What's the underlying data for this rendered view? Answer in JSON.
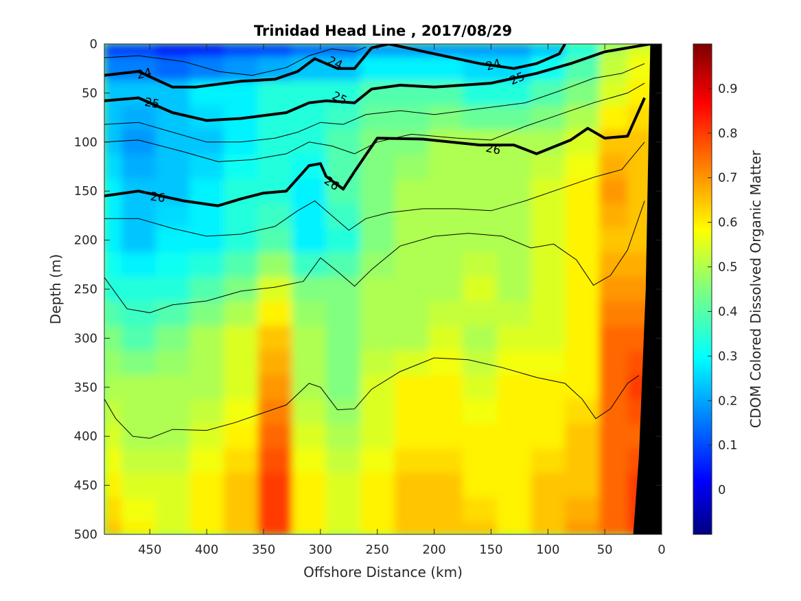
{
  "chart_data": {
    "type": "heatmap",
    "title": "Trinidad Head Line , 2017/08/29",
    "xlabel": "Offshore Distance (km)",
    "ylabel": "Depth (m)",
    "colorbar_label": "CDOM Colored Dissolved Organic Matter",
    "xlim": [
      490,
      0
    ],
    "ylim": [
      500,
      0
    ],
    "x_ticks": [
      450,
      400,
      350,
      300,
      250,
      200,
      150,
      100,
      50,
      0
    ],
    "y_ticks": [
      0,
      50,
      100,
      150,
      200,
      250,
      300,
      350,
      400,
      450,
      500
    ],
    "colorbar_ticks": [
      0,
      0.1,
      0.2,
      0.3,
      0.4,
      0.5,
      0.6,
      0.7,
      0.8,
      0.9
    ],
    "colorbar_range": [
      -0.1,
      1.0
    ],
    "colormap": "jet",
    "field_x_km": [
      490,
      460,
      430,
      400,
      370,
      340,
      310,
      280,
      250,
      220,
      190,
      160,
      130,
      100,
      70,
      40,
      20
    ],
    "field_depth_m": [
      0,
      25,
      50,
      75,
      100,
      125,
      150,
      175,
      200,
      225,
      250,
      275,
      300,
      325,
      350,
      375,
      400,
      425,
      450,
      475,
      500
    ],
    "cdom_profiles": [
      {
        "depth": 0,
        "values": [
          0.1,
          0.1,
          0.05,
          0.05,
          0.1,
          0.1,
          0.15,
          0.15,
          0.2,
          0.2,
          0.2,
          0.2,
          0.2,
          0.25,
          0.35,
          0.5,
          0.55
        ]
      },
      {
        "depth": 50,
        "values": [
          0.25,
          0.25,
          0.25,
          0.3,
          0.3,
          0.35,
          0.35,
          0.35,
          0.4,
          0.4,
          0.4,
          0.35,
          0.35,
          0.4,
          0.45,
          0.55,
          0.6
        ]
      },
      {
        "depth": 100,
        "values": [
          0.25,
          0.2,
          0.25,
          0.25,
          0.3,
          0.35,
          0.35,
          0.4,
          0.45,
          0.45,
          0.5,
          0.5,
          0.5,
          0.5,
          0.55,
          0.65,
          0.65
        ]
      },
      {
        "depth": 150,
        "values": [
          0.3,
          0.25,
          0.25,
          0.3,
          0.35,
          0.35,
          0.3,
          0.4,
          0.45,
          0.5,
          0.5,
          0.5,
          0.5,
          0.55,
          0.6,
          0.7,
          0.65
        ]
      },
      {
        "depth": 200,
        "values": [
          0.3,
          0.25,
          0.3,
          0.3,
          0.35,
          0.4,
          0.3,
          0.35,
          0.45,
          0.5,
          0.5,
          0.5,
          0.5,
          0.55,
          0.6,
          0.65,
          0.65
        ]
      },
      {
        "depth": 250,
        "values": [
          0.35,
          0.35,
          0.35,
          0.4,
          0.45,
          0.55,
          0.45,
          0.45,
          0.5,
          0.5,
          0.5,
          0.55,
          0.5,
          0.55,
          0.6,
          0.7,
          0.7
        ]
      },
      {
        "depth": 300,
        "values": [
          0.45,
          0.4,
          0.45,
          0.5,
          0.55,
          0.65,
          0.5,
          0.45,
          0.5,
          0.5,
          0.55,
          0.5,
          0.55,
          0.55,
          0.6,
          0.75,
          0.75
        ]
      },
      {
        "depth": 350,
        "values": [
          0.5,
          0.5,
          0.5,
          0.5,
          0.55,
          0.7,
          0.5,
          0.45,
          0.55,
          0.6,
          0.6,
          0.55,
          0.6,
          0.6,
          0.6,
          0.75,
          0.8
        ]
      },
      {
        "depth": 400,
        "values": [
          0.55,
          0.5,
          0.5,
          0.55,
          0.6,
          0.75,
          0.55,
          0.5,
          0.55,
          0.6,
          0.6,
          0.6,
          0.6,
          0.6,
          0.65,
          0.75,
          0.75
        ]
      },
      {
        "depth": 450,
        "values": [
          0.6,
          0.55,
          0.55,
          0.6,
          0.65,
          0.8,
          0.6,
          0.55,
          0.6,
          0.65,
          0.65,
          0.6,
          0.6,
          0.65,
          0.65,
          0.75,
          0.8
        ]
      },
      {
        "depth": 500,
        "values": [
          0.65,
          0.6,
          0.55,
          0.6,
          0.65,
          0.8,
          0.6,
          0.55,
          0.6,
          0.65,
          0.65,
          0.65,
          0.6,
          0.65,
          0.7,
          0.75,
          0.8
        ]
      }
    ],
    "density_contours": [
      {
        "level": 24,
        "label": "24",
        "bold": true,
        "points": [
          [
            490,
            32
          ],
          [
            460,
            28
          ],
          [
            430,
            44
          ],
          [
            410,
            44
          ],
          [
            370,
            38
          ],
          [
            340,
            36
          ],
          [
            320,
            28
          ],
          [
            305,
            15
          ],
          [
            285,
            25
          ],
          [
            270,
            25
          ],
          [
            255,
            4
          ],
          [
            240,
            0
          ],
          [
            200,
            10
          ],
          [
            160,
            20
          ],
          [
            130,
            25
          ],
          [
            110,
            20
          ],
          [
            90,
            10
          ],
          [
            85,
            0
          ]
        ]
      },
      {
        "level": 25,
        "label": "25",
        "bold": true,
        "points": [
          [
            490,
            58
          ],
          [
            460,
            55
          ],
          [
            430,
            70
          ],
          [
            400,
            78
          ],
          [
            370,
            76
          ],
          [
            330,
            70
          ],
          [
            310,
            60
          ],
          [
            295,
            58
          ],
          [
            270,
            60
          ],
          [
            255,
            46
          ],
          [
            230,
            42
          ],
          [
            200,
            44
          ],
          [
            150,
            40
          ],
          [
            110,
            30
          ],
          [
            80,
            20
          ],
          [
            50,
            8
          ],
          [
            10,
            0
          ]
        ]
      },
      {
        "level": 26,
        "label": "26",
        "bold": true,
        "points": [
          [
            490,
            155
          ],
          [
            460,
            150
          ],
          [
            420,
            160
          ],
          [
            390,
            165
          ],
          [
            370,
            158
          ],
          [
            350,
            152
          ],
          [
            330,
            150
          ],
          [
            310,
            124
          ],
          [
            300,
            122
          ],
          [
            295,
            135
          ],
          [
            280,
            148
          ],
          [
            270,
            130
          ],
          [
            250,
            96
          ],
          [
            210,
            97
          ],
          [
            160,
            103
          ],
          [
            130,
            103
          ],
          [
            110,
            112
          ],
          [
            80,
            98
          ],
          [
            65,
            86
          ],
          [
            50,
            96
          ],
          [
            30,
            94
          ],
          [
            15,
            55
          ]
        ]
      }
    ],
    "other_isolines": [
      {
        "points": [
          [
            490,
            14
          ],
          [
            460,
            12
          ],
          [
            420,
            18
          ],
          [
            390,
            28
          ],
          [
            360,
            32
          ],
          [
            330,
            24
          ],
          [
            310,
            12
          ],
          [
            290,
            5
          ],
          [
            270,
            8
          ],
          [
            260,
            3
          ]
        ]
      },
      {
        "points": [
          [
            490,
            82
          ],
          [
            460,
            80
          ],
          [
            430,
            90
          ],
          [
            400,
            100
          ],
          [
            370,
            100
          ],
          [
            340,
            96
          ],
          [
            320,
            90
          ],
          [
            300,
            80
          ],
          [
            280,
            82
          ],
          [
            260,
            72
          ],
          [
            230,
            68
          ],
          [
            200,
            72
          ],
          [
            160,
            66
          ],
          [
            120,
            60
          ],
          [
            90,
            48
          ],
          [
            60,
            35
          ],
          [
            35,
            30
          ],
          [
            15,
            20
          ]
        ]
      },
      {
        "points": [
          [
            490,
            100
          ],
          [
            460,
            98
          ],
          [
            420,
            110
          ],
          [
            390,
            120
          ],
          [
            360,
            118
          ],
          [
            330,
            112
          ],
          [
            310,
            100
          ],
          [
            290,
            104
          ],
          [
            270,
            112
          ],
          [
            250,
            100
          ],
          [
            220,
            92
          ],
          [
            180,
            96
          ],
          [
            150,
            98
          ],
          [
            120,
            84
          ],
          [
            90,
            72
          ],
          [
            60,
            60
          ],
          [
            30,
            50
          ],
          [
            15,
            40
          ]
        ]
      },
      {
        "points": [
          [
            490,
            178
          ],
          [
            460,
            178
          ],
          [
            430,
            188
          ],
          [
            400,
            196
          ],
          [
            370,
            194
          ],
          [
            340,
            186
          ],
          [
            320,
            170
          ],
          [
            305,
            160
          ],
          [
            290,
            175
          ],
          [
            275,
            190
          ],
          [
            260,
            178
          ],
          [
            240,
            172
          ],
          [
            210,
            168
          ],
          [
            180,
            168
          ],
          [
            150,
            170
          ],
          [
            120,
            160
          ],
          [
            90,
            148
          ],
          [
            60,
            136
          ],
          [
            35,
            128
          ],
          [
            15,
            100
          ]
        ]
      },
      {
        "points": [
          [
            490,
            238
          ],
          [
            470,
            270
          ],
          [
            450,
            274
          ],
          [
            430,
            266
          ],
          [
            400,
            262
          ],
          [
            370,
            252
          ],
          [
            340,
            248
          ],
          [
            315,
            242
          ],
          [
            300,
            218
          ],
          [
            285,
            232
          ],
          [
            270,
            247
          ],
          [
            255,
            230
          ],
          [
            230,
            206
          ],
          [
            200,
            196
          ],
          [
            170,
            193
          ],
          [
            140,
            196
          ],
          [
            115,
            208
          ],
          [
            95,
            204
          ],
          [
            75,
            220
          ],
          [
            60,
            246
          ],
          [
            45,
            236
          ],
          [
            30,
            210
          ],
          [
            15,
            160
          ]
        ]
      },
      {
        "points": [
          [
            490,
            362
          ],
          [
            480,
            382
          ],
          [
            465,
            400
          ],
          [
            450,
            402
          ],
          [
            430,
            393
          ],
          [
            400,
            394
          ],
          [
            375,
            386
          ],
          [
            350,
            376
          ],
          [
            330,
            368
          ],
          [
            310,
            346
          ],
          [
            300,
            350
          ],
          [
            285,
            373
          ],
          [
            270,
            372
          ],
          [
            255,
            352
          ],
          [
            230,
            334
          ],
          [
            200,
            320
          ],
          [
            170,
            322
          ],
          [
            140,
            330
          ],
          [
            110,
            340
          ],
          [
            85,
            346
          ],
          [
            70,
            362
          ],
          [
            58,
            382
          ],
          [
            45,
            372
          ],
          [
            30,
            346
          ],
          [
            20,
            338
          ]
        ]
      }
    ],
    "contour_labels": [
      {
        "text": "24",
        "x": 455,
        "y": 30,
        "angle": -12
      },
      {
        "text": "24",
        "x": 287,
        "y": 19,
        "angle": 25
      },
      {
        "text": "24",
        "x": 148,
        "y": 21,
        "angle": -15
      },
      {
        "text": "25",
        "x": 448,
        "y": 60,
        "angle": 10
      },
      {
        "text": "25",
        "x": 283,
        "y": 55,
        "angle": 25
      },
      {
        "text": "25",
        "x": 127,
        "y": 35,
        "angle": -22
      },
      {
        "text": "26",
        "x": 443,
        "y": 156,
        "angle": 8
      },
      {
        "text": "26",
        "x": 290,
        "y": 142,
        "angle": 35
      },
      {
        "text": "26",
        "x": 148,
        "y": 107,
        "angle": 12
      }
    ],
    "seafloor_polygon": [
      [
        10,
        0
      ],
      [
        0,
        0
      ],
      [
        0,
        500
      ],
      [
        25,
        500
      ],
      [
        20,
        420
      ],
      [
        14,
        250
      ],
      [
        10,
        0
      ]
    ]
  }
}
